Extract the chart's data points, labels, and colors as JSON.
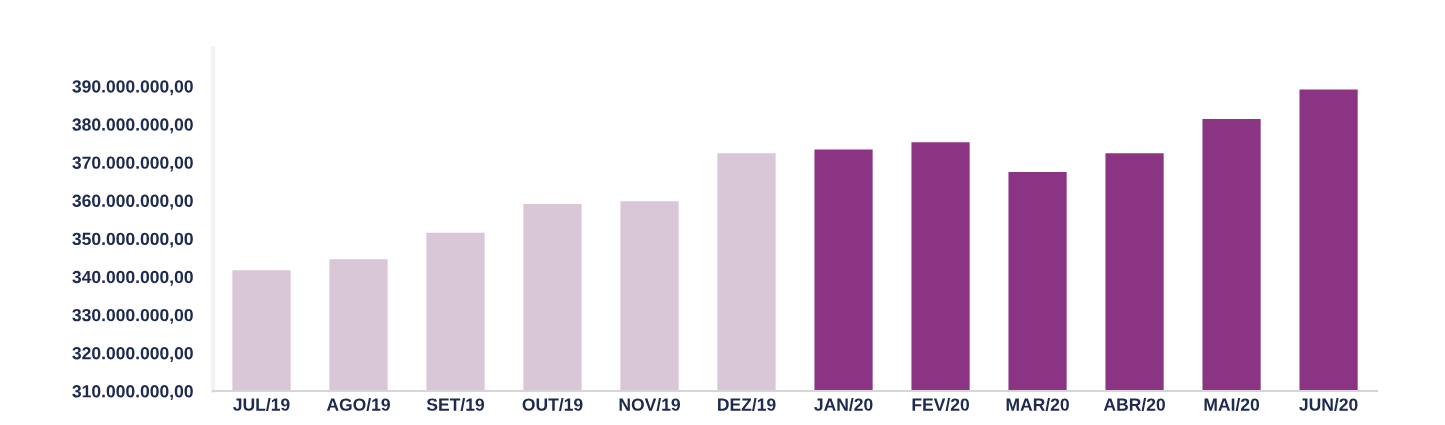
{
  "chart_data": {
    "type": "bar",
    "categories": [
      "JUL/19",
      "AGO/19",
      "SET/19",
      "OUT/19",
      "NOV/19",
      "DEZ/19",
      "JAN/20",
      "FEV/20",
      "MAR/20",
      "ABR/20",
      "MAI/20",
      "JUN/20"
    ],
    "values": [
      341700000,
      344600000,
      351500000,
      359100000,
      359800000,
      372400000,
      373400000,
      375300000,
      367500000,
      372400000,
      381400000,
      389100000
    ],
    "colors": [
      "#d9c6d6",
      "#d9c6d6",
      "#d9c6d6",
      "#d9c6d6",
      "#d9c6d6",
      "#d9c6d6",
      "#8c3484",
      "#8c3484",
      "#8c3484",
      "#8c3484",
      "#8c3484",
      "#8c3484"
    ],
    "ylim": [
      310000000,
      400000000
    ],
    "yticks": [
      {
        "value": 310000000,
        "label": "310.000.000,00"
      },
      {
        "value": 320000000,
        "label": "320.000.000,00"
      },
      {
        "value": 330000000,
        "label": "330.000.000,00"
      },
      {
        "value": 340000000,
        "label": "340.000.000,00"
      },
      {
        "value": 350000000,
        "label": "350.000.000,00"
      },
      {
        "value": 360000000,
        "label": "360.000.000,00"
      },
      {
        "value": 370000000,
        "label": "370.000.000,00"
      },
      {
        "value": 380000000,
        "label": "380.000.000,00"
      },
      {
        "value": 390000000,
        "label": "390.000.000,00"
      }
    ],
    "grid": false,
    "legend": false
  }
}
